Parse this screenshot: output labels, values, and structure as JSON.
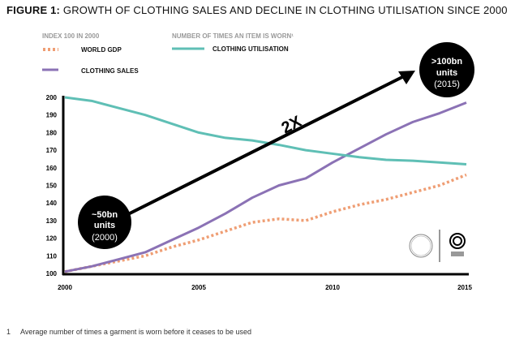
{
  "title_bold": "FIGURE 1:",
  "title_rest": " GROWTH OF CLOTHING SALES AND DECLINE IN CLOTHING UTILISATION SINCE 2000",
  "legend": {
    "group1_heading": "INDEX 100 IN 2000",
    "group2_heading": "NUMBER OF TIMES AN ITEM IS WORN¹",
    "world_gdp": "WORLD GDP",
    "clothing_sales": "CLOTHING SALES",
    "clothing_utilisation": "CLOTHING UTILISATION"
  },
  "annotations": {
    "start": {
      "line1": "~50bn",
      "line2": "units",
      "line3": "(2000)"
    },
    "end": {
      "line1": ">100bn",
      "line2": "units",
      "line3": "(2015)"
    },
    "arrow_label": "2X"
  },
  "footnote": {
    "num": "1",
    "text": "Average number of times a garment is worn before it ceases to be used"
  },
  "chart_data": {
    "type": "line",
    "title": "GROWTH OF CLOTHING SALES AND DECLINE IN CLOTHING UTILISATION SINCE 2000",
    "x": [
      2000,
      2001,
      2002,
      2003,
      2004,
      2005,
      2006,
      2007,
      2008,
      2009,
      2010,
      2011,
      2012,
      2013,
      2014,
      2015
    ],
    "xticks": [
      "2000",
      "2005",
      "2010",
      "2015"
    ],
    "yticks": [
      "100",
      "110",
      "120",
      "130",
      "140",
      "150",
      "160",
      "170",
      "180",
      "190",
      "200"
    ],
    "ylim": [
      100,
      200
    ],
    "xlim": [
      2000,
      2015
    ],
    "grid": false,
    "legend_placement": "top-left",
    "series": [
      {
        "name": "WORLD GDP",
        "color": "#ef9e74",
        "style": "dotted",
        "values": [
          101,
          104,
          107,
          110,
          115,
          119,
          124,
          129,
          131,
          130,
          135,
          139,
          142,
          146,
          150,
          156
        ]
      },
      {
        "name": "CLOTHING SALES",
        "color": "#8b72b5",
        "style": "solid",
        "values": [
          101,
          104,
          108,
          112,
          119,
          126,
          134,
          143,
          150,
          154,
          163,
          171,
          179,
          186,
          191,
          197
        ]
      },
      {
        "name": "CLOTHING UTILISATION",
        "color": "#5fbfb5",
        "style": "solid",
        "values": [
          200,
          198,
          194,
          190,
          185,
          180,
          177,
          175.5,
          173,
          170,
          168,
          166,
          164.5,
          164,
          163,
          162
        ]
      }
    ]
  }
}
